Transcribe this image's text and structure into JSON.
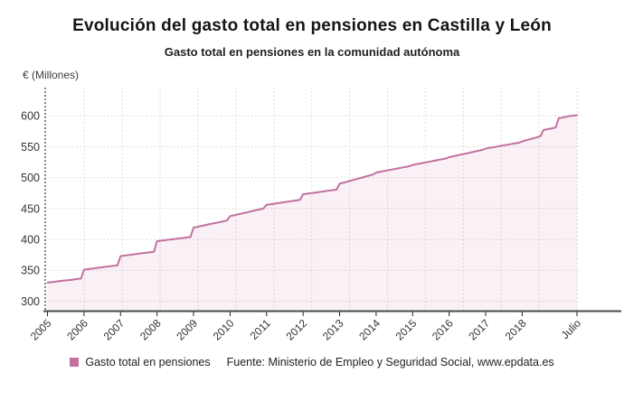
{
  "header": {
    "title": "Evolución del gasto total en pensiones en Castilla y León",
    "subtitle": "Gasto total en pensiones en la comunidad autónoma"
  },
  "footer": {
    "source": "Fuente: Ministerio de Empleo y Seguridad Social, www.epdata.es"
  },
  "chart_data": {
    "type": "area",
    "title": "Evolución del gasto total en pensiones en Castilla y León",
    "subtitle": "Gasto total en pensiones en la comunidad autónoma",
    "ylabel": "€ (Millones)",
    "xlabel": "",
    "x_tick_labels": [
      "2005",
      "2006",
      "2007",
      "2008",
      "2009",
      "2010",
      "2011",
      "2012",
      "2013",
      "2014",
      "2015",
      "2016",
      "2017",
      "2018",
      "Julio"
    ],
    "x_range_months": "2005-01 to 2019-07",
    "y_ticks": [
      300,
      350,
      400,
      450,
      500,
      550,
      600
    ],
    "ylim": [
      300,
      600
    ],
    "grid": "dotted",
    "legend_position": "bottom",
    "colors": {
      "line": "#c2719f",
      "area_fill": "rgba(194,113,159,0.10)",
      "grid": "#d2d2d2",
      "axis": "#4a4a4a",
      "text": "#333333"
    },
    "series": [
      {
        "name": "Gasto total en pensiones",
        "frequency": "monthly",
        "values": [
          330.0,
          330.6,
          331.2,
          331.8,
          332.4,
          333.0,
          333.5,
          334.1,
          334.7,
          335.3,
          335.9,
          336.5,
          351.0,
          351.6,
          352.3,
          352.9,
          353.5,
          354.2,
          354.8,
          355.5,
          356.1,
          356.7,
          357.4,
          358.0,
          373.0,
          373.6,
          374.3,
          374.9,
          375.5,
          376.2,
          376.8,
          377.5,
          378.1,
          378.7,
          379.4,
          380.0,
          397.0,
          397.6,
          398.3,
          398.9,
          399.5,
          400.2,
          400.8,
          401.5,
          402.1,
          402.7,
          403.4,
          404.0,
          419.0,
          420.0,
          421.1,
          422.1,
          423.2,
          424.2,
          425.3,
          426.3,
          427.4,
          428.4,
          429.5,
          430.5,
          437.5,
          438.6,
          439.8,
          440.9,
          442.0,
          443.2,
          444.3,
          445.5,
          446.6,
          447.7,
          448.9,
          450.0,
          456.0,
          456.7,
          457.5,
          458.2,
          458.9,
          459.6,
          460.4,
          461.1,
          461.8,
          462.5,
          463.3,
          464.0,
          473.0,
          473.7,
          474.4,
          475.0,
          475.7,
          476.4,
          477.1,
          477.8,
          478.5,
          479.1,
          479.8,
          480.5,
          490.0,
          491.4,
          492.7,
          494.1,
          495.5,
          496.8,
          498.2,
          499.5,
          500.9,
          502.3,
          503.6,
          505.0,
          508.0,
          509.0,
          509.9,
          510.9,
          511.8,
          512.8,
          513.7,
          514.7,
          515.6,
          516.6,
          517.5,
          518.5,
          520.5,
          521.5,
          522.4,
          523.4,
          524.3,
          525.3,
          526.2,
          527.2,
          528.1,
          529.1,
          530.0,
          531.0,
          533.0,
          534.1,
          535.2,
          536.3,
          537.4,
          538.5,
          539.5,
          540.6,
          541.7,
          542.8,
          543.9,
          545.0,
          547.0,
          547.9,
          548.7,
          549.6,
          550.5,
          551.3,
          552.2,
          553.1,
          553.9,
          554.8,
          555.7,
          556.5,
          558.5,
          559.9,
          561.3,
          562.7,
          564.1,
          565.5,
          567.0,
          577.0,
          578.0,
          579.0,
          580.0,
          581.0,
          596.0,
          597.0,
          598.0,
          599.0,
          600.0,
          600.5,
          601.0
        ]
      }
    ]
  }
}
